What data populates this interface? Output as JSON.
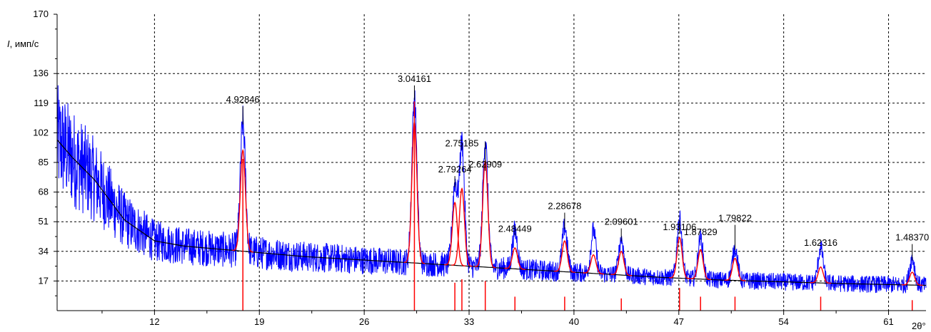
{
  "chart_data": {
    "type": "line",
    "title": "",
    "xlabel": "2θ°",
    "ylabel_italic": "I",
    "ylabel_rest": ", имп/с",
    "xlim": [
      5.5,
      63.5
    ],
    "ylim": [
      0,
      170
    ],
    "x_ticks": [
      "12",
      "19",
      "26",
      "33",
      "40",
      "47",
      "54",
      "61"
    ],
    "x_tick_values": [
      12,
      19,
      26,
      33,
      40,
      47,
      54,
      61
    ],
    "x_minor_ticks": [
      8.5,
      15.5,
      22.5,
      29.5,
      36.5,
      43.5,
      50.5,
      57.5
    ],
    "y_ticks": [
      "17",
      "34",
      "51",
      "68",
      "85",
      "102",
      "119",
      "136",
      "170"
    ],
    "y_tick_values": [
      17,
      34,
      51,
      68,
      85,
      102,
      119,
      136,
      170
    ],
    "grid": true,
    "colors": {
      "measured": "#0000ff",
      "fit": "#ff0000",
      "background": "#000000",
      "stick": "#ff0000",
      "grid": "#000000"
    },
    "background_curve": {
      "x": [
        5.5,
        6.5,
        8,
        10,
        12,
        14,
        18,
        22,
        26,
        30,
        34,
        38,
        42,
        46,
        50,
        54,
        58,
        63.5
      ],
      "y": [
        98,
        88,
        75,
        52,
        40,
        37,
        34,
        31,
        29,
        27,
        25,
        23,
        21,
        19,
        17.5,
        16.5,
        15.5,
        14.5
      ]
    },
    "peaks": [
      {
        "x": 17.9,
        "height": 108,
        "fit_height": 92,
        "label": "4.92846",
        "label_y": 118,
        "stick": 87
      },
      {
        "x": 29.35,
        "height": 122,
        "fit_height": 108,
        "label": "3.04161",
        "label_y": 130,
        "stick": 120
      },
      {
        "x": 32.05,
        "height": 72,
        "fit_height": 62,
        "label": "2.79264",
        "label_y": 78,
        "stick": 16
      },
      {
        "x": 32.52,
        "height": 96,
        "fit_height": 70,
        "label": "2.75185",
        "label_y": 93,
        "stick": 18
      },
      {
        "x": 34.08,
        "height": 98,
        "fit_height": 86,
        "label": "2.62909",
        "label_y": 81,
        "stick": 17
      },
      {
        "x": 36.06,
        "height": 46,
        "fit_height": 36,
        "label": "2.48449",
        "label_y": 44,
        "stick": 8
      },
      {
        "x": 39.38,
        "height": 48,
        "fit_height": 40,
        "label": "2.28678",
        "label_y": 57,
        "stick": 8
      },
      {
        "x": 41.3,
        "height": 46,
        "fit_height": 32,
        "label": "",
        "label_y": 0,
        "stick": 0
      },
      {
        "x": 43.16,
        "height": 41,
        "fit_height": 34,
        "label": "2.09601",
        "label_y": 48,
        "stick": 7
      },
      {
        "x": 47.05,
        "height": 53,
        "fit_height": 42,
        "label": "1.93106",
        "label_y": 45,
        "stick": 13
      },
      {
        "x": 48.45,
        "height": 42,
        "fit_height": 35,
        "label": "1.87829",
        "label_y": 42,
        "stick": 8
      },
      {
        "x": 50.75,
        "height": 36,
        "fit_height": 30,
        "label": "1.79822",
        "label_y": 50,
        "stick": 8
      },
      {
        "x": 56.47,
        "height": 36,
        "fit_height": 25,
        "label": "1.62316",
        "label_y": 36,
        "stick": 8
      },
      {
        "x": 62.58,
        "height": 30,
        "fit_height": 22,
        "label": "1.48370",
        "label_y": 39,
        "stick": 6
      }
    ]
  }
}
